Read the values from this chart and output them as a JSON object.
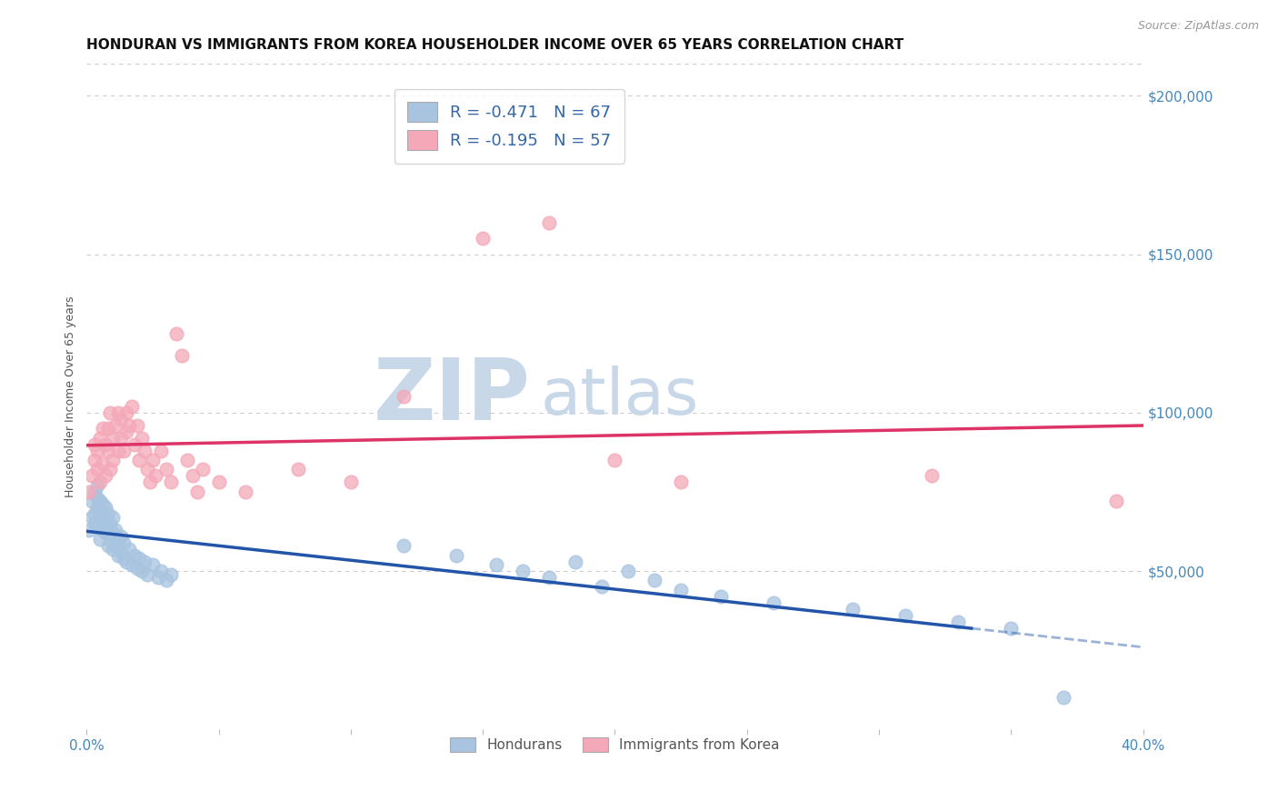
{
  "title": "HONDURAN VS IMMIGRANTS FROM KOREA HOUSEHOLDER INCOME OVER 65 YEARS CORRELATION CHART",
  "source": "Source: ZipAtlas.com",
  "ylabel": "Householder Income Over 65 years",
  "xlim": [
    0.0,
    0.4
  ],
  "ylim": [
    0,
    210000
  ],
  "yticks_right": [
    50000,
    100000,
    150000,
    200000
  ],
  "ytick_labels_right": [
    "$50,000",
    "$100,000",
    "$150,000",
    "$200,000"
  ],
  "blue_color": "#a8c4e0",
  "pink_color": "#f4a8b8",
  "blue_line_color": "#2255aa",
  "pink_line_color": "#dd3366",
  "blue_scatter_x": [
    0.001,
    0.002,
    0.002,
    0.003,
    0.003,
    0.003,
    0.004,
    0.004,
    0.004,
    0.004,
    0.005,
    0.005,
    0.005,
    0.005,
    0.006,
    0.006,
    0.006,
    0.007,
    0.007,
    0.007,
    0.008,
    0.008,
    0.008,
    0.009,
    0.009,
    0.01,
    0.01,
    0.01,
    0.011,
    0.011,
    0.012,
    0.012,
    0.013,
    0.013,
    0.014,
    0.014,
    0.015,
    0.016,
    0.017,
    0.018,
    0.019,
    0.02,
    0.021,
    0.022,
    0.023,
    0.025,
    0.027,
    0.028,
    0.03,
    0.032,
    0.12,
    0.14,
    0.155,
    0.165,
    0.175,
    0.185,
    0.195,
    0.205,
    0.215,
    0.225,
    0.24,
    0.26,
    0.29,
    0.31,
    0.33,
    0.35,
    0.37
  ],
  "blue_scatter_y": [
    63000,
    67000,
    72000,
    65000,
    68000,
    75000,
    64000,
    70000,
    73000,
    77000,
    60000,
    65000,
    68000,
    72000,
    63000,
    67000,
    71000,
    62000,
    66000,
    70000,
    58000,
    63000,
    68000,
    60000,
    65000,
    57000,
    62000,
    67000,
    58000,
    63000,
    55000,
    60000,
    56000,
    61000,
    54000,
    59000,
    53000,
    57000,
    52000,
    55000,
    51000,
    54000,
    50000,
    53000,
    49000,
    52000,
    48000,
    50000,
    47000,
    49000,
    58000,
    55000,
    52000,
    50000,
    48000,
    53000,
    45000,
    50000,
    47000,
    44000,
    42000,
    40000,
    38000,
    36000,
    34000,
    32000,
    10000
  ],
  "pink_scatter_x": [
    0.001,
    0.002,
    0.003,
    0.003,
    0.004,
    0.004,
    0.005,
    0.005,
    0.006,
    0.006,
    0.007,
    0.007,
    0.008,
    0.008,
    0.009,
    0.009,
    0.01,
    0.01,
    0.011,
    0.012,
    0.012,
    0.013,
    0.013,
    0.014,
    0.015,
    0.015,
    0.016,
    0.017,
    0.018,
    0.019,
    0.02,
    0.021,
    0.022,
    0.023,
    0.024,
    0.025,
    0.026,
    0.028,
    0.03,
    0.032,
    0.034,
    0.036,
    0.038,
    0.04,
    0.042,
    0.044,
    0.05,
    0.06,
    0.08,
    0.1,
    0.15,
    0.175,
    0.2,
    0.225,
    0.12,
    0.32,
    0.39
  ],
  "pink_scatter_y": [
    75000,
    80000,
    85000,
    90000,
    82000,
    88000,
    78000,
    92000,
    84000,
    95000,
    80000,
    90000,
    88000,
    95000,
    82000,
    100000,
    85000,
    92000,
    96000,
    88000,
    100000,
    92000,
    98000,
    88000,
    94000,
    100000,
    96000,
    102000,
    90000,
    96000,
    85000,
    92000,
    88000,
    82000,
    78000,
    85000,
    80000,
    88000,
    82000,
    78000,
    125000,
    118000,
    85000,
    80000,
    75000,
    82000,
    78000,
    75000,
    82000,
    78000,
    155000,
    160000,
    85000,
    78000,
    105000,
    80000,
    72000
  ],
  "background_color": "#ffffff",
  "grid_color": "#cccccc",
  "watermark_zip": "ZIP",
  "watermark_atlas": "atlas",
  "watermark_color": "#c8d8e8",
  "legend_label_blue": "R = -0.471   N = 67",
  "legend_label_pink": "R = -0.195   N = 57",
  "bottom_legend_hondurans": "Hondurans",
  "bottom_legend_korea": "Immigrants from Korea",
  "title_fontsize": 11,
  "axis_label_fontsize": 9
}
